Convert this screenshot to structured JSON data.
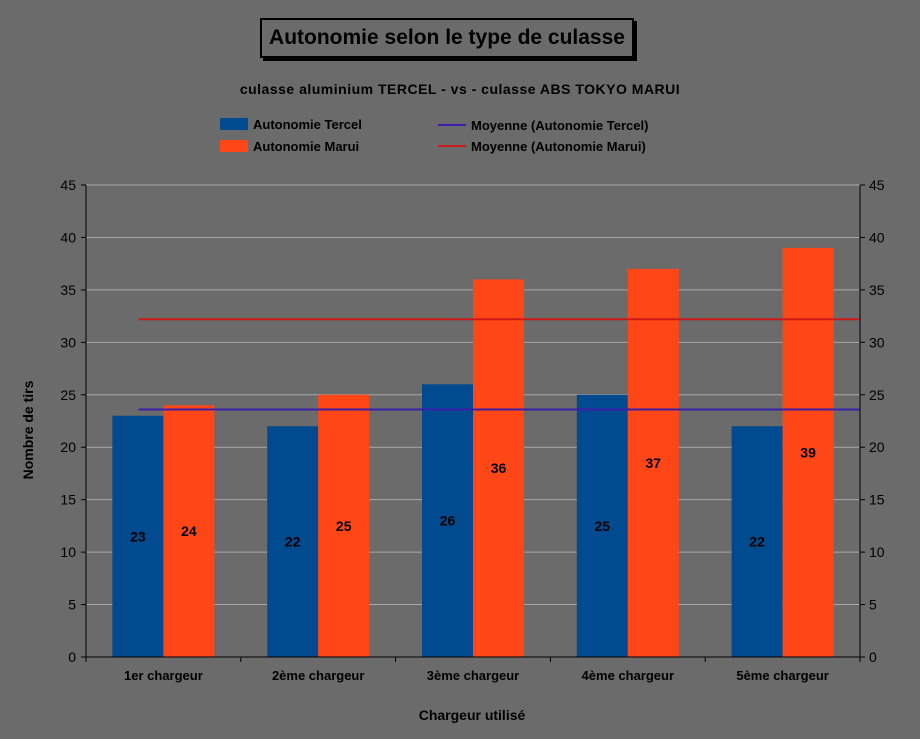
{
  "chart_data": {
    "type": "bar",
    "title": "Autonomie selon le type de culasse",
    "subtitle": "culasse aluminium TERCEL - vs - culasse ABS TOKYO MARUI",
    "categories": [
      "1er chargeur",
      "2ème chargeur",
      "3ème chargeur",
      "4ème chargeur",
      "5ème chargeur"
    ],
    "series": [
      {
        "name": "Autonomie Tercel",
        "values": [
          23,
          22,
          26,
          25,
          22
        ],
        "color": "#004a8f"
      },
      {
        "name": "Autonomie Marui",
        "values": [
          24,
          25,
          36,
          37,
          39
        ],
        "color": "#ff4616"
      }
    ],
    "averages": [
      {
        "name": "Moyenne (Autonomie Tercel)",
        "value": 23.6,
        "color": "#3a1faa"
      },
      {
        "name": "Moyenne (Autonomie Marui)",
        "value": 32.2,
        "color": "#cc1a1a"
      }
    ],
    "xlabel": "Chargeur utilisé",
    "ylabel": "Nombre de tirs",
    "ylim": [
      0,
      45
    ],
    "yticks": [
      0,
      5,
      10,
      15,
      20,
      25,
      30,
      35,
      40,
      45
    ],
    "grid": true,
    "legend": "top"
  }
}
